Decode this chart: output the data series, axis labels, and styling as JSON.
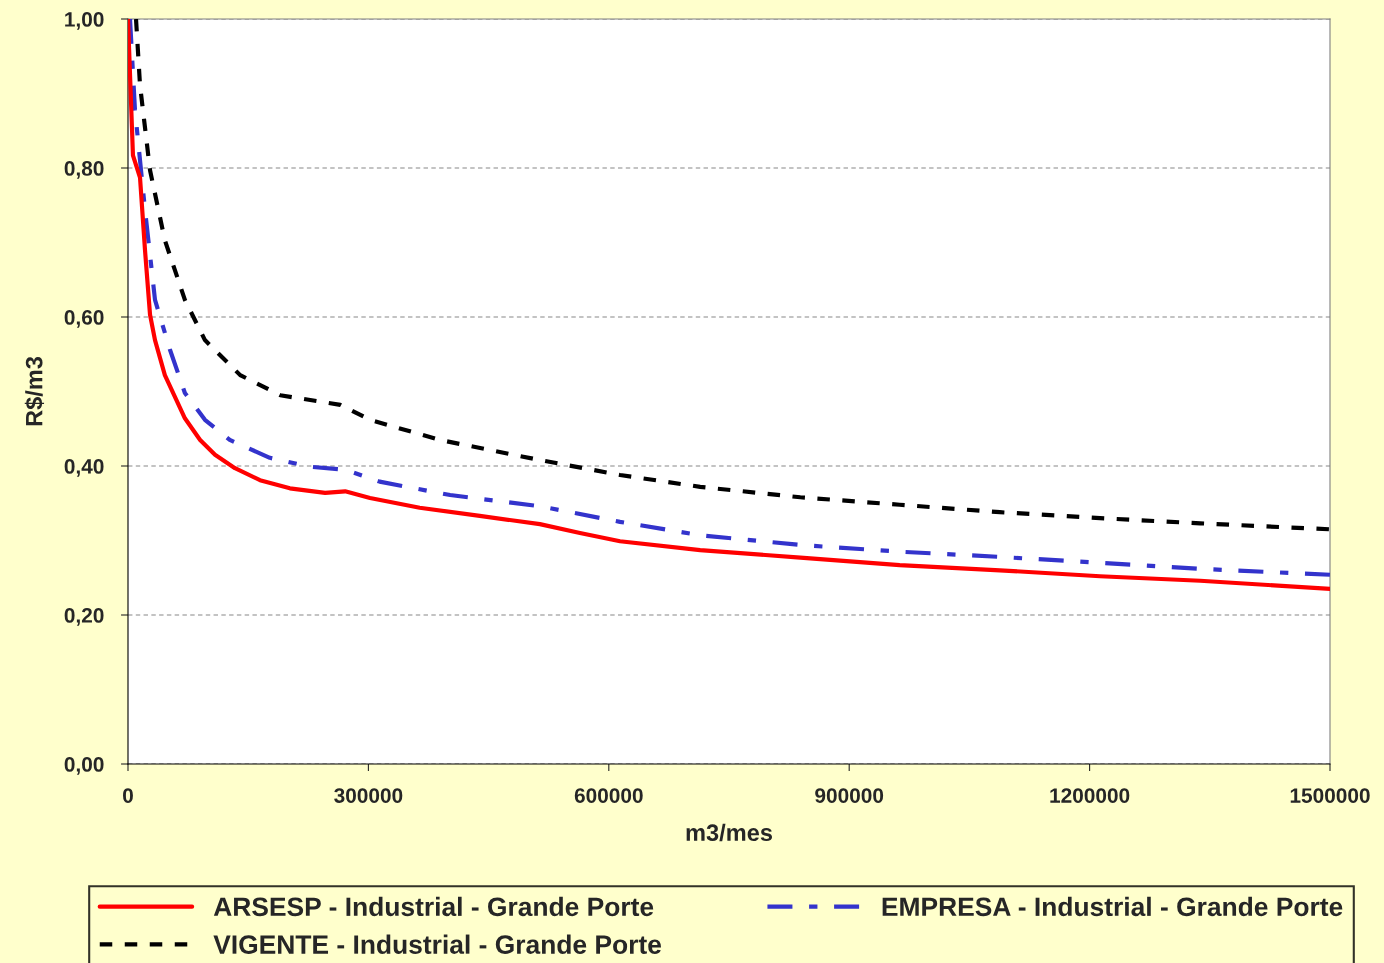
{
  "chart_data": {
    "type": "line",
    "xlabel": "m3/mes",
    "ylabel": "R$/m3",
    "xlim": [
      0,
      1500000
    ],
    "ylim": [
      0,
      1.0
    ],
    "xticks": [
      0,
      300000,
      600000,
      900000,
      1200000,
      1500000
    ],
    "yticks": [
      {
        "value": 0,
        "label": "0,00"
      },
      {
        "value": 0.2,
        "label": "0,20"
      },
      {
        "value": 0.4,
        "label": "0,40"
      },
      {
        "value": 0.6,
        "label": "0,60"
      },
      {
        "value": 0.8,
        "label": "0,80"
      },
      {
        "value": 1.0,
        "label": "1,00"
      }
    ],
    "grid": "y",
    "legend": "bottom",
    "marker": "none",
    "series": [
      {
        "name": "ARSESP - Industrial - Grande Porte",
        "color": "#ff0000",
        "line_style": "solid",
        "x": [
          0,
          6200,
          15000,
          21200,
          27500,
          33700,
          46000,
          71000,
          90000,
          108600,
          133500,
          164700,
          202000,
          246000,
          271000,
          302000,
          364000,
          439000,
          514000,
          564000,
          614000,
          714000,
          839000,
          963000,
          1088000,
          1213000,
          1338000,
          1500000
        ],
        "values": [
          1.0,
          0.817,
          0.787,
          0.69,
          0.603,
          0.569,
          0.522,
          0.464,
          0.435,
          0.415,
          0.397,
          0.381,
          0.37,
          0.364,
          0.366,
          0.357,
          0.344,
          0.333,
          0.322,
          0.31,
          0.299,
          0.287,
          0.277,
          0.267,
          0.26,
          0.252,
          0.246,
          0.235
        ]
      },
      {
        "name": "EMPRESA - Industrial - Grande Porte",
        "color": "#3333cc",
        "line_style": "dashed",
        "x": [
          2500,
          8700,
          21200,
          33700,
          52400,
          71000,
          96000,
          127000,
          177000,
          227000,
          271000,
          314000,
          402000,
          514000,
          614000,
          714000,
          839000,
          963000,
          1088000,
          1213000,
          1338000,
          1500000
        ],
        "values": [
          1.0,
          0.878,
          0.744,
          0.623,
          0.556,
          0.498,
          0.462,
          0.435,
          0.411,
          0.399,
          0.395,
          0.379,
          0.361,
          0.346,
          0.325,
          0.307,
          0.294,
          0.285,
          0.278,
          0.27,
          0.262,
          0.254
        ]
      },
      {
        "name": "VIGENTE - Industrial - Grande Porte",
        "color": "#000000",
        "line_style": "dotted",
        "x": [
          10000,
          15000,
          27500,
          46000,
          71000,
          96000,
          140000,
          190000,
          265000,
          302000,
          389000,
          514000,
          614000,
          714000,
          839000,
          963000,
          1088000,
          1213000,
          1338000,
          1500000
        ],
        "values": [
          1.0,
          0.911,
          0.797,
          0.703,
          0.623,
          0.569,
          0.522,
          0.495,
          0.482,
          0.462,
          0.435,
          0.408,
          0.388,
          0.372,
          0.358,
          0.348,
          0.338,
          0.33,
          0.323,
          0.315
        ]
      }
    ]
  }
}
